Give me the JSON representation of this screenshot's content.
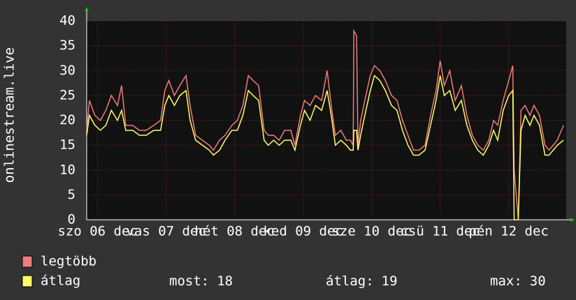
{
  "chart_data": {
    "type": "line",
    "y_label": "onlinestream.live",
    "x": [
      -0.16,
      -0.12,
      -0.04,
      0.04,
      0.12,
      0.2,
      0.29,
      0.35,
      0.41,
      0.51,
      0.61,
      0.71,
      0.82,
      0.92,
      0.98,
      1.04,
      1.12,
      1.2,
      1.29,
      1.35,
      1.43,
      1.53,
      1.63,
      1.69,
      1.78,
      1.86,
      1.96,
      2.04,
      2.12,
      2.2,
      2.27,
      2.35,
      2.43,
      2.49,
      2.57,
      2.65,
      2.73,
      2.82,
      2.88,
      2.96,
      3.02,
      3.1,
      3.18,
      3.27,
      3.35,
      3.41,
      3.47,
      3.55,
      3.63,
      3.69,
      3.73,
      3.74,
      3.78,
      3.8,
      3.84,
      3.9,
      3.98,
      4.04,
      4.12,
      4.2,
      4.29,
      4.37,
      4.45,
      4.53,
      4.61,
      4.69,
      4.78,
      4.86,
      4.94,
      5.0,
      5.06,
      5.14,
      5.22,
      5.31,
      5.39,
      5.47,
      5.55,
      5.63,
      5.71,
      5.78,
      5.84,
      5.92,
      6.0,
      6.06,
      6.08,
      6.14,
      6.18,
      6.24,
      6.31,
      6.37,
      6.45,
      6.53,
      6.59,
      6.65,
      6.71,
      6.8
    ],
    "series": [
      {
        "name": "legtöbb",
        "color": "#f07c7c",
        "values": [
          18,
          24,
          21,
          20,
          22,
          25,
          23,
          27,
          19,
          19,
          18,
          18,
          19,
          20,
          26,
          28,
          25,
          27,
          29,
          23,
          17,
          16,
          15,
          14,
          16,
          17,
          19,
          20,
          23,
          29,
          28,
          27,
          18,
          17,
          17,
          16,
          18,
          18,
          15,
          21,
          24,
          23,
          25,
          24,
          30,
          23,
          17,
          18,
          16,
          16,
          15,
          38,
          37,
          15,
          20,
          24,
          29,
          31,
          30,
          28,
          25,
          24,
          20,
          17,
          14,
          14,
          15,
          21,
          26,
          32,
          27,
          30,
          24,
          27,
          21,
          17,
          15,
          14,
          16,
          20,
          19,
          24,
          28,
          31,
          10,
          0,
          22,
          23,
          21,
          23,
          21,
          15,
          14,
          15,
          16,
          19
        ]
      },
      {
        "name": "átlag",
        "color": "#ffff66",
        "values": [
          17,
          21,
          19,
          18,
          19,
          22,
          20,
          22,
          18,
          18,
          17,
          17,
          18,
          18,
          23,
          25,
          23,
          25,
          26,
          20,
          16,
          15,
          14,
          13,
          14,
          16,
          18,
          18,
          21,
          26,
          25,
          24,
          16,
          15,
          16,
          15,
          16,
          16,
          14,
          19,
          22,
          20,
          23,
          22,
          26,
          21,
          15,
          16,
          15,
          14,
          14,
          18,
          18,
          14,
          17,
          21,
          26,
          29,
          28,
          26,
          23,
          22,
          18,
          15,
          13,
          13,
          14,
          19,
          24,
          29,
          25,
          26,
          22,
          24,
          19,
          16,
          14,
          13,
          15,
          18,
          16,
          22,
          25,
          26,
          0,
          0,
          18,
          21,
          19,
          21,
          19,
          13,
          13,
          14,
          15,
          16
        ]
      }
    ],
    "xlim": [
      -0.16,
      6.84
    ],
    "xticks": [
      {
        "value": 0,
        "label": "szo 06 dec"
      },
      {
        "value": 1,
        "label": "vas 07 dec"
      },
      {
        "value": 2,
        "label": "hét 08 dec"
      },
      {
        "value": 3,
        "label": "ked 09 dec"
      },
      {
        "value": 4,
        "label": "sze 10 dec"
      },
      {
        "value": 5,
        "label": "csü 11 dec"
      },
      {
        "value": 6,
        "label": "pén 12 dec"
      }
    ],
    "ylim": [
      0,
      40
    ],
    "yticks": [
      0,
      5,
      10,
      15,
      20,
      25,
      30,
      35,
      40
    ],
    "grid": true,
    "stats": [
      {
        "label": "most:",
        "value": 18
      },
      {
        "label": "átlag:",
        "value": 19
      },
      {
        "label": "max:",
        "value": 30
      }
    ]
  }
}
